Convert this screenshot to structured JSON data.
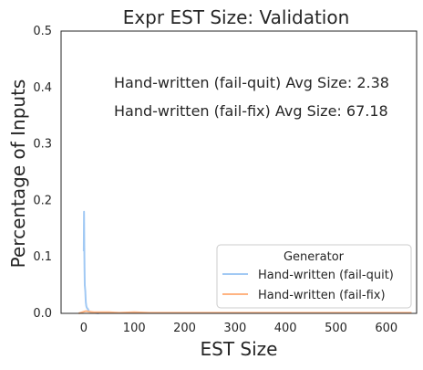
{
  "chart_data": {
    "type": "line",
    "title": "Expr EST Size: Validation",
    "xlabel": "EST Size",
    "ylabel": "Percentage of Inputs",
    "xlim": [
      -45,
      660
    ],
    "ylim": [
      0,
      0.5
    ],
    "xticks": [
      0,
      100,
      200,
      300,
      400,
      500,
      600
    ],
    "yticks": [
      0.0,
      0.1,
      0.2,
      0.3,
      0.4,
      0.5
    ],
    "xtick_labels": [
      "0",
      "100",
      "200",
      "300",
      "400",
      "500",
      "600"
    ],
    "ytick_labels": [
      "0.0",
      "0.1",
      "0.2",
      "0.3",
      "0.4",
      "0.5"
    ],
    "grid": false,
    "annotations": [
      "Hand-written (fail-quit) Avg Size: 2.38",
      "Hand-written (fail-fix) Avg Size: 67.18"
    ],
    "legend": {
      "title": "Generator",
      "placement": "lower-right",
      "entries": [
        "Hand-written (fail-quit)",
        "Hand-written (fail-fix)"
      ]
    },
    "series": [
      {
        "name": "Hand-written (fail-quit)",
        "color": "#a1c9f4",
        "points": [
          [
            0,
            0.11
          ],
          [
            0.5,
            0.18
          ],
          [
            1,
            0.12
          ],
          [
            1.5,
            0.08
          ],
          [
            2,
            0.05
          ],
          [
            3,
            0.04
          ],
          [
            4,
            0.02
          ],
          [
            5,
            0.013
          ],
          [
            6,
            0.01
          ],
          [
            8,
            0.008
          ],
          [
            10,
            0.004
          ],
          [
            12,
            0.003
          ],
          [
            15,
            0.002
          ],
          [
            20,
            0.001
          ],
          [
            30,
            0.0
          ]
        ]
      },
      {
        "name": "Hand-written (fail-fix)",
        "color": "#ffb482",
        "points": [
          [
            -10,
            0.0
          ],
          [
            0,
            0.003
          ],
          [
            5,
            0.004
          ],
          [
            10,
            0.003
          ],
          [
            20,
            0.002
          ],
          [
            30,
            0.002
          ],
          [
            50,
            0.002
          ],
          [
            70,
            0.001
          ],
          [
            100,
            0.002
          ],
          [
            130,
            0.001
          ],
          [
            160,
            0.001
          ],
          [
            200,
            0.001
          ],
          [
            250,
            0.001
          ],
          [
            300,
            0.001
          ],
          [
            350,
            0.001
          ],
          [
            400,
            0.001
          ],
          [
            450,
            0.001
          ],
          [
            500,
            0.001
          ],
          [
            550,
            0.001
          ],
          [
            600,
            0.001
          ],
          [
            650,
            0.001
          ]
        ]
      }
    ]
  }
}
